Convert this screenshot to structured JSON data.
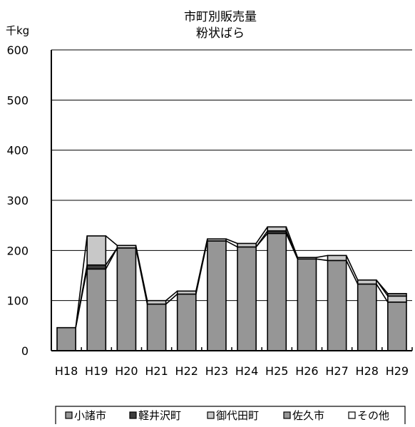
{
  "chart_data": {
    "type": "bar",
    "stacked": true,
    "title": "市町別販売量",
    "subtitle": "粉状ばら",
    "ylabel": "千kg",
    "xlabel": "",
    "ylim": [
      0,
      600
    ],
    "yticks": [
      0,
      100,
      200,
      300,
      400,
      500,
      600
    ],
    "grid": true,
    "legend_position": "bottom",
    "categories": [
      "H18",
      "H19",
      "H20",
      "H21",
      "H22",
      "H23",
      "H24",
      "H25",
      "H26",
      "H27",
      "H28",
      "H29"
    ],
    "series": [
      {
        "name": "小諸市",
        "color": "#969696",
        "values": [
          46,
          163,
          205,
          93,
          113,
          219,
          207,
          234,
          183,
          180,
          133,
          97
        ]
      },
      {
        "name": "軽井沢町",
        "color": "#3c3c3c",
        "values": [
          0,
          8,
          0,
          0,
          0,
          0,
          0,
          5,
          0,
          0,
          0,
          0
        ]
      },
      {
        "name": "御代田町",
        "color": "#c8c8c8",
        "values": [
          0,
          58,
          5,
          7,
          6,
          4,
          7,
          8,
          3,
          10,
          8,
          12
        ]
      },
      {
        "name": "佐久市",
        "color": "#969696",
        "values": [
          0,
          0,
          0,
          0,
          0,
          0,
          0,
          0,
          0,
          0,
          0,
          5
        ]
      },
      {
        "name": "その他",
        "color": "#ffffff",
        "values": [
          0,
          0,
          0,
          0,
          0,
          0,
          0,
          0,
          0,
          0,
          0,
          0
        ]
      }
    ]
  }
}
